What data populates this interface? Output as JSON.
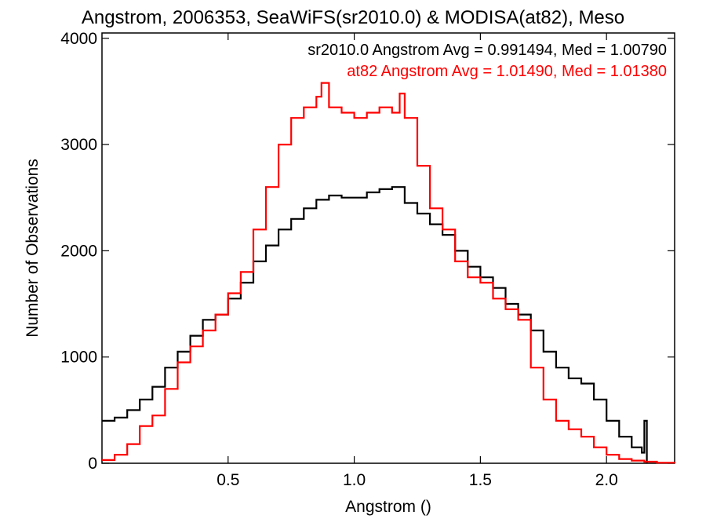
{
  "chart_data": {
    "type": "line",
    "title": "Angstrom, 2006353, SeaWiFS(sr2010.0) & MODISA(at82), Meso",
    "xlabel": "Angstrom ()",
    "ylabel": "Number of Observations",
    "xlim": [
      0.0,
      2.27
    ],
    "ylim": [
      0,
      4050
    ],
    "x_ticks": [
      0.5,
      1.0,
      1.5,
      2.0
    ],
    "x_tick_labels": [
      "0.5",
      "1.0",
      "1.5",
      "2.0"
    ],
    "y_ticks": [
      0,
      1000,
      2000,
      3000,
      4000
    ],
    "y_tick_labels": [
      "0",
      "1000",
      "2000",
      "3000",
      "4000"
    ],
    "grid": false,
    "legend_position": "top-right",
    "annotations": [
      {
        "text": "sr2010.0 Angstrom Avg = 0.991494, Med = 1.00790",
        "color": "#000000"
      },
      {
        "text": "at82 Angstrom Avg = 1.01490, Med = 1.01380",
        "color": "#ff0000"
      }
    ],
    "series": [
      {
        "color": "#000000",
        "style": "step",
        "x": [
          0.0,
          0.05,
          0.1,
          0.15,
          0.2,
          0.25,
          0.3,
          0.35,
          0.4,
          0.45,
          0.5,
          0.55,
          0.6,
          0.65,
          0.7,
          0.75,
          0.8,
          0.85,
          0.9,
          0.95,
          1.0,
          1.05,
          1.1,
          1.15,
          1.2,
          1.25,
          1.3,
          1.35,
          1.4,
          1.45,
          1.5,
          1.55,
          1.6,
          1.65,
          1.7,
          1.75,
          1.8,
          1.85,
          1.9,
          1.95,
          2.0,
          2.05,
          2.1,
          2.14,
          2.15,
          2.16
        ],
        "y": [
          400,
          430,
          500,
          600,
          720,
          900,
          1050,
          1200,
          1350,
          1400,
          1550,
          1700,
          1900,
          2050,
          2200,
          2300,
          2400,
          2480,
          2520,
          2500,
          2500,
          2550,
          2580,
          2600,
          2450,
          2350,
          2250,
          2150,
          2000,
          1850,
          1750,
          1650,
          1500,
          1400,
          1250,
          1050,
          900,
          800,
          750,
          600,
          400,
          250,
          150,
          100,
          400,
          0
        ]
      },
      {
        "color": "#ff0000",
        "style": "step",
        "x": [
          0.0,
          0.05,
          0.1,
          0.15,
          0.2,
          0.25,
          0.3,
          0.35,
          0.4,
          0.45,
          0.5,
          0.55,
          0.6,
          0.65,
          0.7,
          0.75,
          0.8,
          0.85,
          0.87,
          0.9,
          0.95,
          1.0,
          1.05,
          1.1,
          1.15,
          1.18,
          1.2,
          1.25,
          1.3,
          1.35,
          1.4,
          1.45,
          1.5,
          1.55,
          1.6,
          1.65,
          1.7,
          1.75,
          1.8,
          1.85,
          1.9,
          1.95,
          2.0,
          2.05,
          2.1,
          2.15,
          2.2,
          2.27
        ],
        "y": [
          30,
          80,
          180,
          350,
          450,
          700,
          950,
          1100,
          1250,
          1400,
          1600,
          1800,
          2200,
          2600,
          3000,
          3250,
          3350,
          3450,
          3580,
          3350,
          3300,
          3250,
          3300,
          3350,
          3300,
          3480,
          3250,
          2800,
          2400,
          2200,
          1900,
          1750,
          1700,
          1550,
          1450,
          1350,
          900,
          600,
          400,
          320,
          250,
          150,
          80,
          40,
          25,
          15,
          5,
          0
        ]
      }
    ]
  }
}
